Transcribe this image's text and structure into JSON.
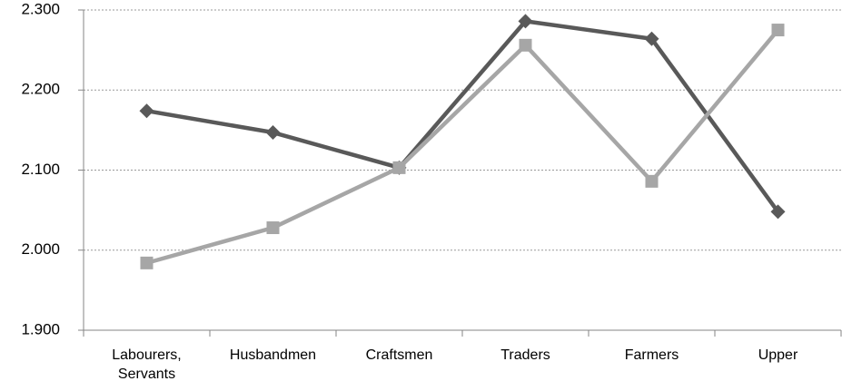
{
  "chart_data": {
    "type": "line",
    "categories": [
      "Labourers, Servants",
      "Husbandmen",
      "Craftsmen",
      "Traders",
      "Farmers",
      "Upper"
    ],
    "series": [
      {
        "color": "#595959",
        "marker": "diamond",
        "values": [
          2.174,
          2.147,
          2.103,
          2.286,
          2.264,
          2.048
        ]
      },
      {
        "color": "#a6a6a6",
        "marker": "square",
        "values": [
          1.984,
          2.028,
          2.103,
          2.256,
          2.086,
          2.275
        ]
      }
    ],
    "ylim": [
      1.9,
      2.3
    ],
    "yticks": [
      {
        "value": 1.9,
        "label": "1.900"
      },
      {
        "value": 2.0,
        "label": "2.000"
      },
      {
        "value": 2.1,
        "label": "2.100"
      },
      {
        "value": 2.2,
        "label": "2.200"
      },
      {
        "value": 2.3,
        "label": "2.300"
      }
    ],
    "grid": true
  }
}
